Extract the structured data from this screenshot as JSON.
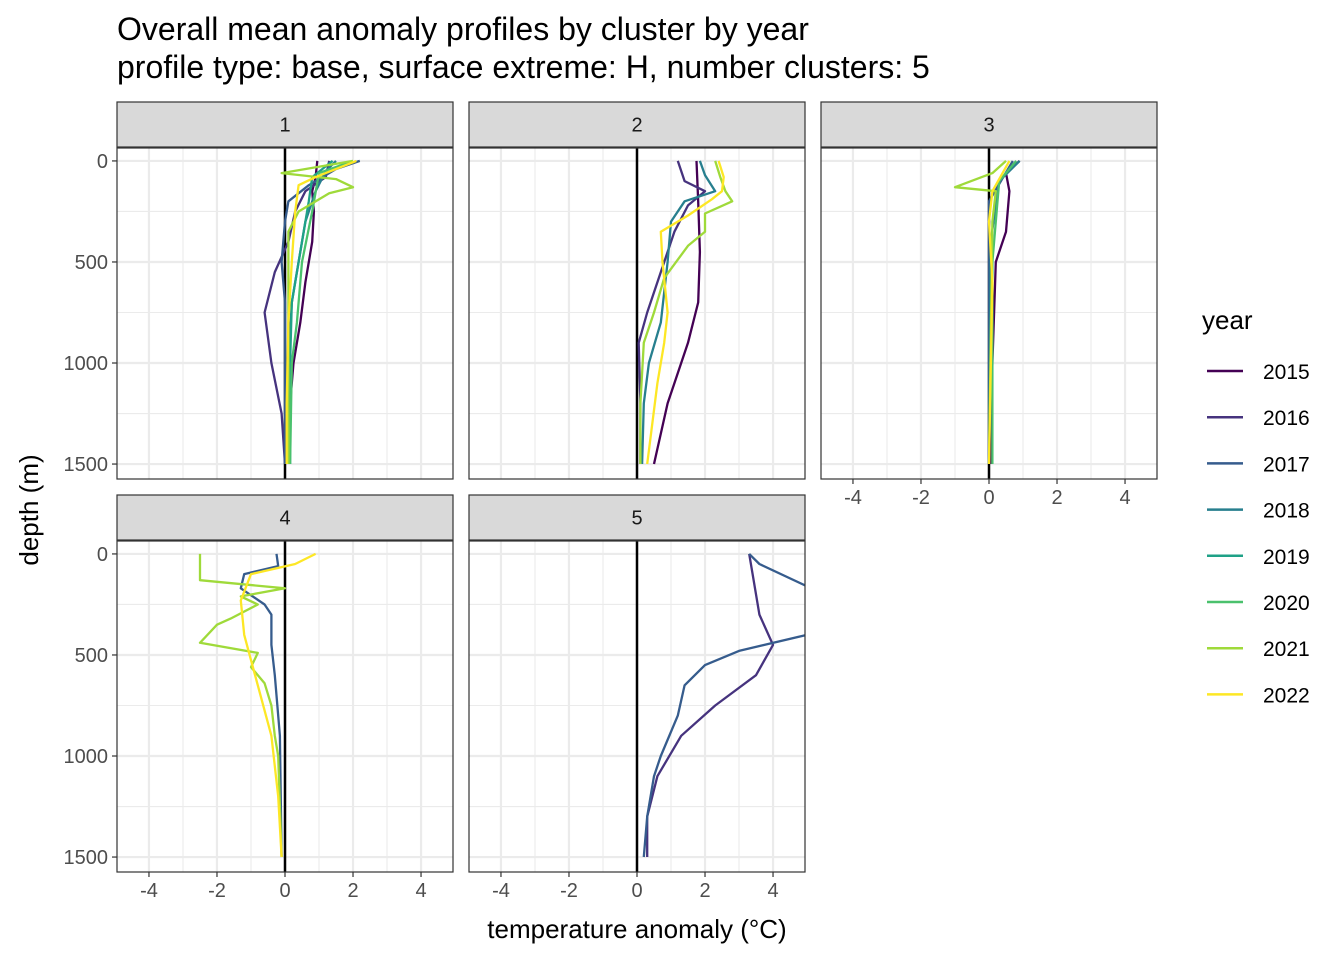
{
  "chart_data": {
    "type": "line",
    "title": "Overall mean anomaly profiles by cluster by year",
    "subtitle": "profile type: base, surface extreme: H, number clusters: 5",
    "xlabel": "temperature anomaly (°C)",
    "ylabel": "depth (m)",
    "xlim": [
      -4.94,
      4.94
    ],
    "ylim": [
      1574,
      -64
    ],
    "x_ticks": [
      -4,
      -2,
      0,
      2,
      4
    ],
    "y_ticks": [
      0,
      500,
      1000,
      1500
    ],
    "grid": true,
    "legend": {
      "title": "year",
      "position": "right",
      "entries": [
        "2015",
        "2016",
        "2017",
        "2018",
        "2019",
        "2020",
        "2021",
        "2022"
      ]
    },
    "colors": {
      "2015": "#440154",
      "2016": "#46337E",
      "2017": "#365C8D",
      "2018": "#277F8E",
      "2019": "#1FA187",
      "2020": "#4AC16D",
      "2021": "#9FDA3A",
      "2022": "#FDE725"
    },
    "facets": [
      {
        "label": "1",
        "series": [
          {
            "name": "2015",
            "points": [
              [
                0.95,
                0
              ],
              [
                0.9,
                80
              ],
              [
                0.8,
                150
              ],
              [
                0.85,
                250
              ],
              [
                0.8,
                400
              ],
              [
                0.6,
                600
              ],
              [
                0.45,
                800
              ],
              [
                0.25,
                1000
              ],
              [
                0.1,
                1300
              ],
              [
                0.05,
                1500
              ]
            ]
          },
          {
            "name": "2016",
            "points": [
              [
                1.3,
                0
              ],
              [
                1.2,
                80
              ],
              [
                0.6,
                150
              ],
              [
                0.3,
                250
              ],
              [
                0.1,
                400
              ],
              [
                -0.3,
                550
              ],
              [
                -0.6,
                750
              ],
              [
                -0.4,
                1000
              ],
              [
                -0.1,
                1250
              ],
              [
                0,
                1500
              ]
            ]
          },
          {
            "name": "2017",
            "points": [
              [
                2.2,
                0
              ],
              [
                1.5,
                40
              ],
              [
                0.7,
                120
              ],
              [
                0.1,
                200
              ],
              [
                0,
                300
              ],
              [
                -0.1,
                500
              ],
              [
                0,
                700
              ],
              [
                0,
                1000
              ],
              [
                0,
                1500
              ]
            ]
          },
          {
            "name": "2018",
            "points": [
              [
                1.5,
                0
              ],
              [
                1.2,
                50
              ],
              [
                0.9,
                150
              ],
              [
                0.6,
                300
              ],
              [
                0.4,
                500
              ],
              [
                0.2,
                700
              ],
              [
                0.1,
                1000
              ],
              [
                0.1,
                1500
              ]
            ]
          },
          {
            "name": "2019",
            "points": [
              [
                1.4,
                0
              ],
              [
                0.8,
                80
              ],
              [
                0.7,
                200
              ],
              [
                0.5,
                400
              ],
              [
                0.2,
                700
              ],
              [
                0.15,
                1000
              ],
              [
                0.15,
                1500
              ]
            ]
          },
          {
            "name": "2020",
            "points": [
              [
                2.0,
                0
              ],
              [
                1.0,
                60
              ],
              [
                0.8,
                250
              ],
              [
                0.5,
                500
              ],
              [
                0.35,
                800
              ],
              [
                0.2,
                1000
              ],
              [
                0.15,
                1500
              ]
            ]
          },
          {
            "name": "2021",
            "points": [
              [
                2.0,
                0
              ],
              [
                -0.1,
                60
              ],
              [
                1.5,
                90
              ],
              [
                2.0,
                130
              ],
              [
                1.3,
                160
              ],
              [
                0.4,
                250
              ],
              [
                0.1,
                350
              ],
              [
                0.1,
                600
              ],
              [
                0.1,
                1000
              ],
              [
                0.1,
                1500
              ]
            ]
          },
          {
            "name": "2022",
            "points": [
              [
                2.1,
                0
              ],
              [
                0.9,
                80
              ],
              [
                0.4,
                120
              ],
              [
                0.3,
                250
              ],
              [
                0.2,
                500
              ],
              [
                0.1,
                800
              ],
              [
                0.05,
                1200
              ],
              [
                0.05,
                1500
              ]
            ]
          }
        ]
      },
      {
        "label": "2",
        "series": [
          {
            "name": "2015",
            "points": [
              [
                1.75,
                0
              ],
              [
                1.8,
                200
              ],
              [
                1.85,
                450
              ],
              [
                1.8,
                700
              ],
              [
                1.5,
                900
              ],
              [
                0.9,
                1200
              ],
              [
                0.5,
                1500
              ]
            ]
          },
          {
            "name": "2016",
            "points": [
              [
                1.2,
                0
              ],
              [
                1.4,
                100
              ],
              [
                2.0,
                150
              ],
              [
                1.5,
                220
              ],
              [
                1.1,
                350
              ],
              [
                0.7,
                550
              ],
              [
                0.3,
                750
              ],
              [
                0.05,
                900
              ],
              [
                0.1,
                1200
              ],
              [
                0.1,
                1500
              ]
            ]
          },
          {
            "name": "2018",
            "points": [
              [
                1.85,
                0
              ],
              [
                2.0,
                70
              ],
              [
                2.3,
                150
              ],
              [
                1.4,
                200
              ],
              [
                1.0,
                300
              ],
              [
                0.9,
                500
              ],
              [
                0.7,
                800
              ],
              [
                0.35,
                1000
              ],
              [
                0.2,
                1200
              ],
              [
                0.15,
                1500
              ]
            ]
          },
          {
            "name": "2021",
            "points": [
              [
                2.3,
                0
              ],
              [
                2.45,
                80
              ],
              [
                2.6,
                150
              ],
              [
                2.8,
                200
              ],
              [
                2.0,
                260
              ],
              [
                2.0,
                350
              ],
              [
                1.5,
                420
              ],
              [
                0.8,
                580
              ],
              [
                0.5,
                750
              ],
              [
                0.2,
                900
              ],
              [
                0.1,
                1200
              ],
              [
                0.1,
                1500
              ]
            ]
          },
          {
            "name": "2022",
            "points": [
              [
                2.4,
                0
              ],
              [
                2.55,
                80
              ],
              [
                2.5,
                150
              ],
              [
                2.2,
                190
              ],
              [
                1.5,
                270
              ],
              [
                0.7,
                350
              ],
              [
                0.75,
                500
              ],
              [
                0.9,
                750
              ],
              [
                0.8,
                900
              ],
              [
                0.6,
                1100
              ],
              [
                0.3,
                1500
              ]
            ]
          }
        ]
      },
      {
        "label": "3",
        "series": [
          {
            "name": "2015",
            "points": [
              [
                0.9,
                0
              ],
              [
                0.5,
                60
              ],
              [
                0.6,
                150
              ],
              [
                0.5,
                350
              ],
              [
                0.2,
                500
              ],
              [
                0.1,
                1000
              ],
              [
                0.05,
                1500
              ]
            ]
          },
          {
            "name": "2017",
            "points": [
              [
                0.7,
                0
              ],
              [
                0,
                200
              ],
              [
                0,
                1500
              ]
            ]
          },
          {
            "name": "2018",
            "points": [
              [
                0.9,
                0
              ],
              [
                0.3,
                100
              ],
              [
                0.05,
                400
              ],
              [
                0,
                1500
              ]
            ]
          },
          {
            "name": "2020",
            "points": [
              [
                0.8,
                0
              ],
              [
                0.3,
                100
              ],
              [
                0.1,
                500
              ],
              [
                0.1,
                1500
              ]
            ]
          },
          {
            "name": "2021",
            "points": [
              [
                0.5,
                0
              ],
              [
                0.1,
                60
              ],
              [
                -1.0,
                130
              ],
              [
                0.2,
                150
              ],
              [
                0.1,
                300
              ],
              [
                0,
                1500
              ]
            ]
          },
          {
            "name": "2022",
            "points": [
              [
                0.6,
                0
              ],
              [
                0.1,
                150
              ],
              [
                0,
                300
              ],
              [
                0.1,
                600
              ],
              [
                0,
                1500
              ]
            ]
          }
        ]
      },
      {
        "label": "4",
        "series": [
          {
            "name": "2017",
            "points": [
              [
                -0.25,
                0
              ],
              [
                -0.2,
                60
              ],
              [
                -1.2,
                100
              ],
              [
                -1.3,
                170
              ],
              [
                -0.6,
                250
              ],
              [
                -0.4,
                300
              ],
              [
                -0.4,
                450
              ],
              [
                -0.3,
                600
              ],
              [
                -0.15,
                900
              ],
              [
                -0.1,
                1500
              ]
            ]
          },
          {
            "name": "2021",
            "points": [
              [
                -2.5,
                0
              ],
              [
                -2.5,
                130
              ],
              [
                0,
                170
              ],
              [
                -1.3,
                210
              ],
              [
                -0.8,
                250
              ],
              [
                -1.6,
                320
              ],
              [
                -2.0,
                350
              ],
              [
                -2.5,
                440
              ],
              [
                -0.8,
                490
              ],
              [
                -1.0,
                560
              ],
              [
                -0.6,
                640
              ],
              [
                -0.4,
                750
              ],
              [
                -0.3,
                900
              ],
              [
                -0.2,
                1000
              ],
              [
                -0.1,
                1500
              ]
            ]
          },
          {
            "name": "2022",
            "points": [
              [
                0.9,
                0
              ],
              [
                0.3,
                50
              ],
              [
                -1.0,
                100
              ],
              [
                -1.3,
                230
              ],
              [
                -1.2,
                400
              ],
              [
                -0.8,
                650
              ],
              [
                -0.4,
                900
              ],
              [
                -0.2,
                1200
              ],
              [
                -0.1,
                1500
              ]
            ]
          }
        ]
      },
      {
        "label": "5",
        "series": [
          {
            "name": "2016",
            "points": [
              [
                3.3,
                0
              ],
              [
                3.4,
                100
              ],
              [
                3.6,
                300
              ],
              [
                4.0,
                450
              ],
              [
                3.5,
                600
              ],
              [
                2.3,
                750
              ],
              [
                1.3,
                900
              ],
              [
                0.6,
                1100
              ],
              [
                0.3,
                1300
              ],
              [
                0.3,
                1500
              ]
            ]
          },
          {
            "name": "2017",
            "points": [
              [
                3.3,
                0
              ],
              [
                3.6,
                50
              ],
              [
                5.0,
                160
              ],
              [
                6.0,
                220
              ],
              [
                6.0,
                380
              ],
              [
                5.0,
                400
              ],
              [
                3.0,
                480
              ],
              [
                2.0,
                550
              ],
              [
                1.4,
                650
              ],
              [
                1.2,
                800
              ],
              [
                0.7,
                1000
              ],
              [
                0.5,
                1100
              ],
              [
                0.3,
                1300
              ],
              [
                0.2,
                1500
              ]
            ]
          }
        ]
      }
    ]
  }
}
